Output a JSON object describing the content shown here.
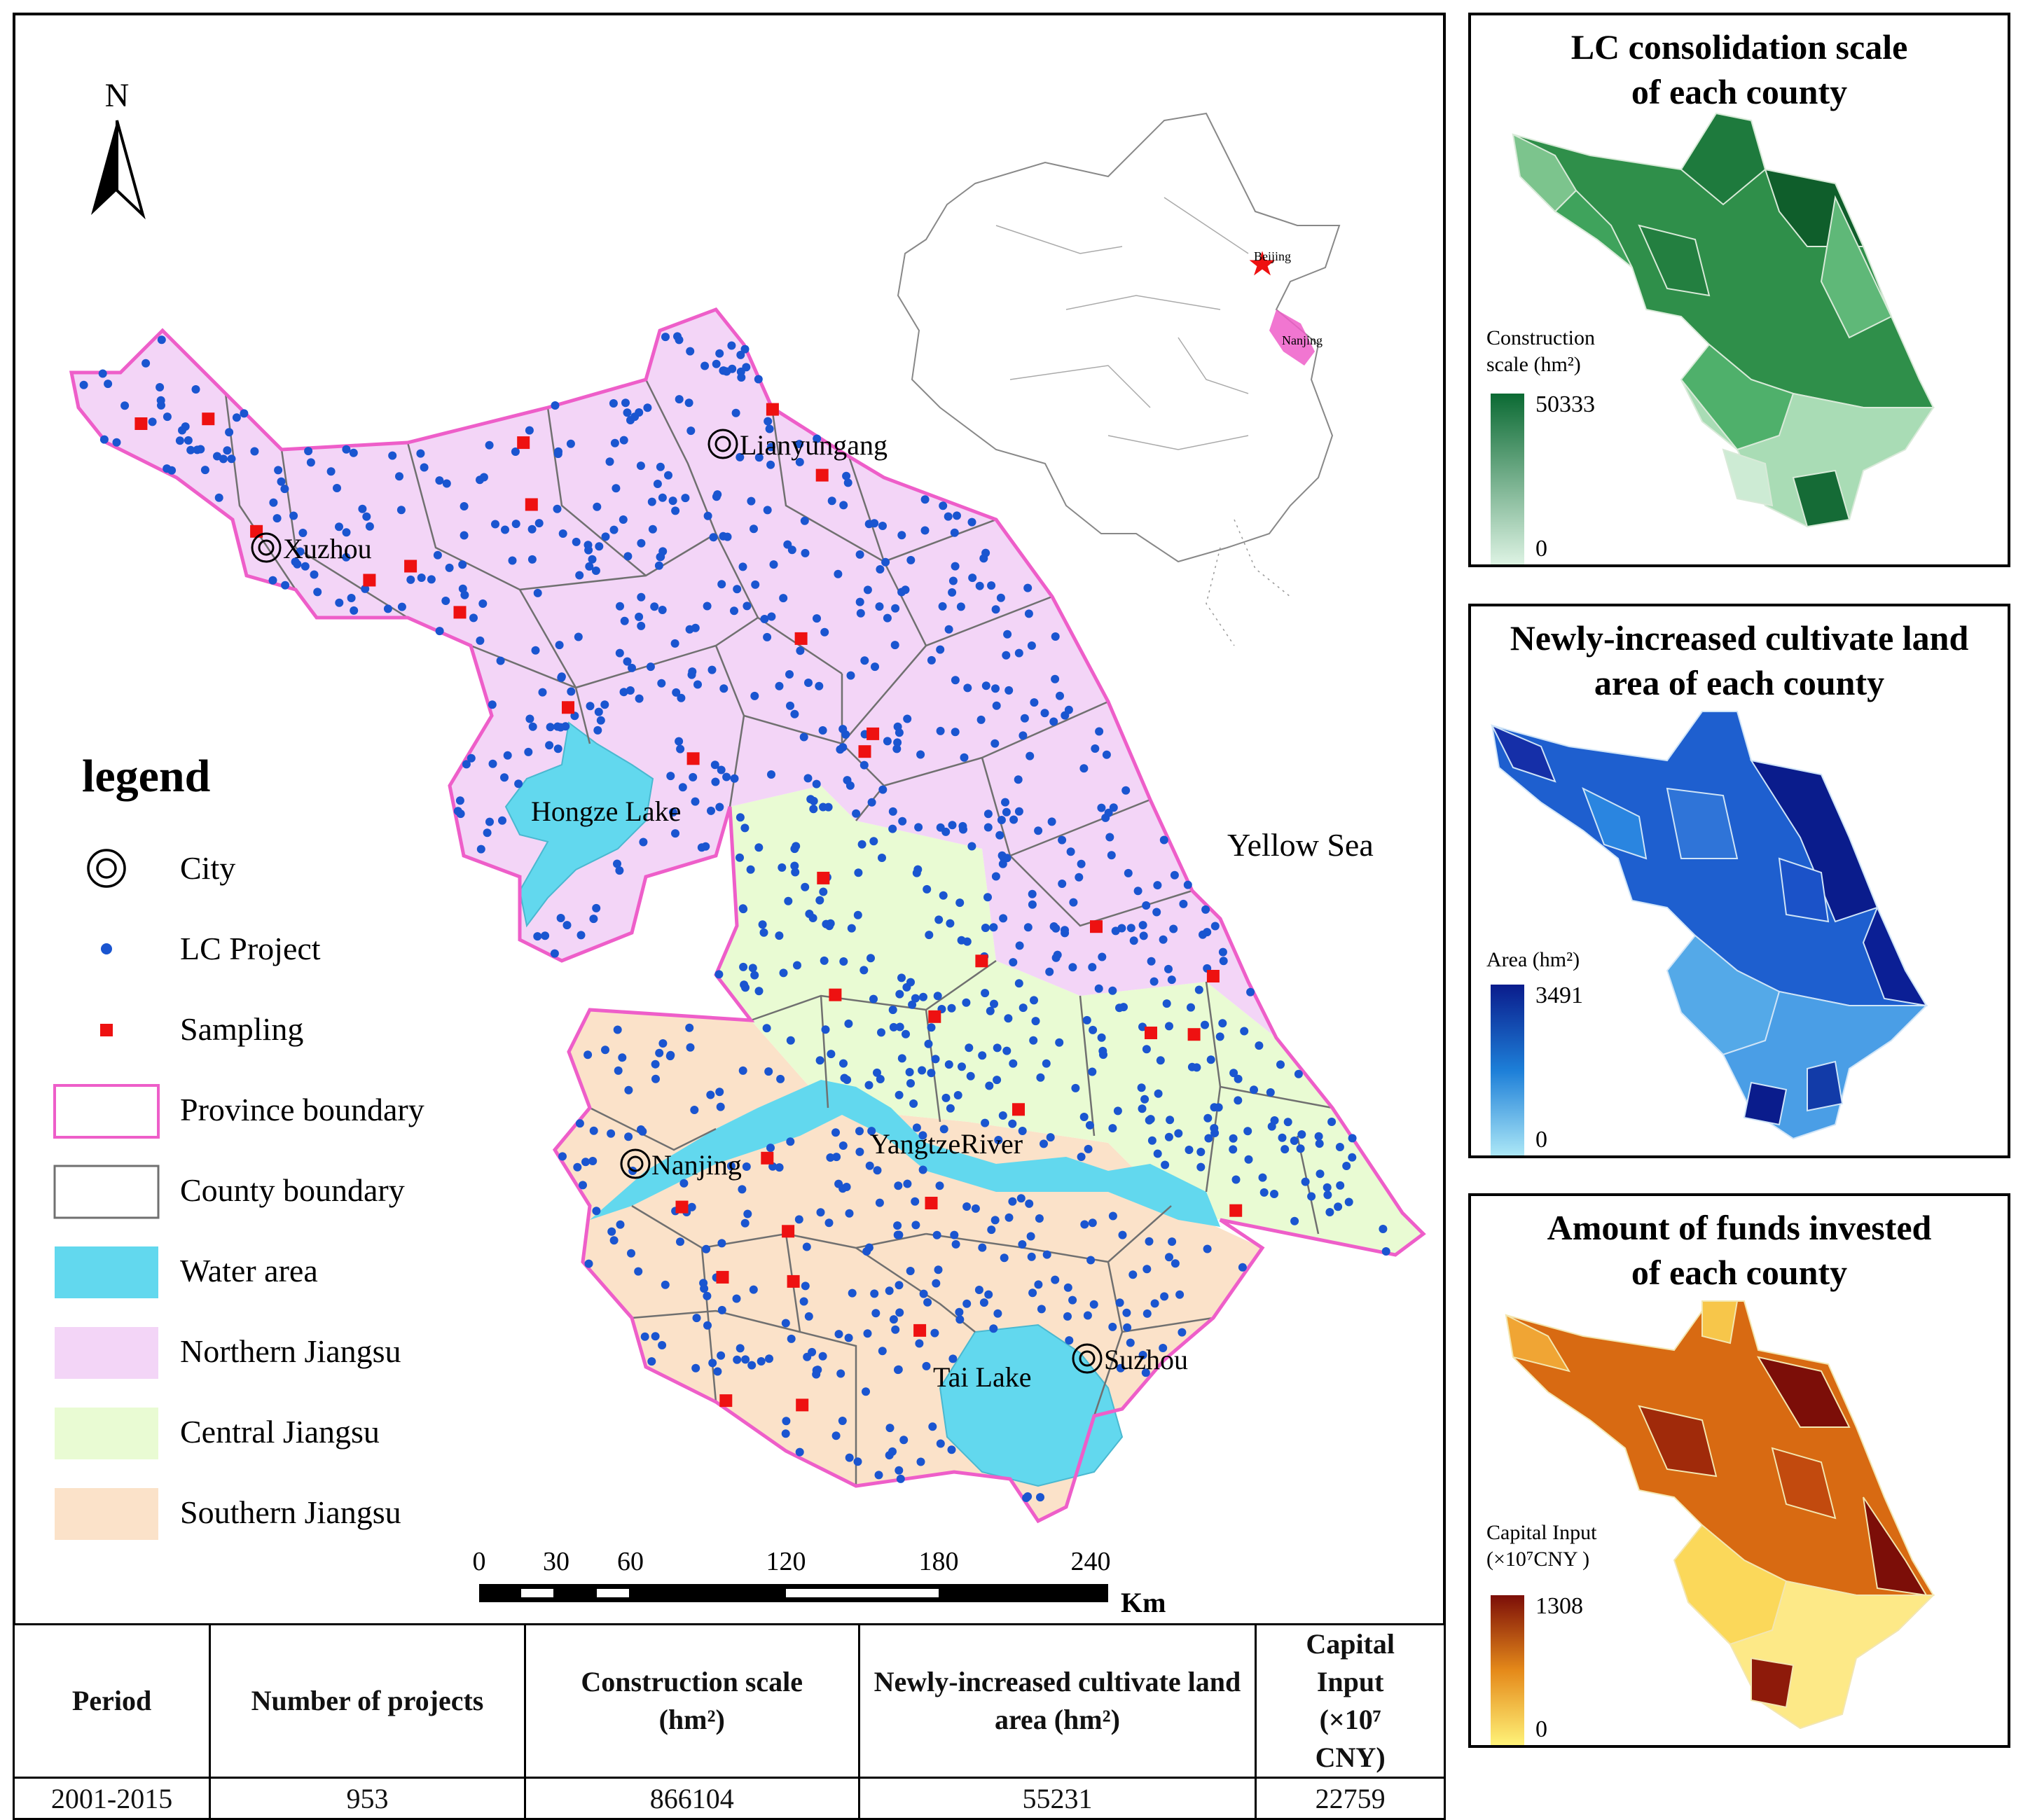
{
  "main_map": {
    "north_label": "N",
    "inset_labels": {
      "capital": "Beijing",
      "province": "Nanjing"
    },
    "cities": [
      "Lianyungang",
      "Xuzhou",
      "Nanjing",
      "Suzhou"
    ],
    "water_labels": {
      "hongze": "Hongze Lake",
      "yangtze": "YangtzeRiver",
      "tai": "Tai Lake",
      "sea": "Yellow Sea"
    },
    "legend": {
      "title": "legend",
      "items": [
        "City",
        "LC Project",
        "Sampling",
        "Province boundary",
        "County boundary",
        "Water area",
        "Northern Jiangsu",
        "Central Jiangsu",
        "Southern Jiangsu"
      ]
    },
    "scale": {
      "ticks": [
        "0",
        "30",
        "60",
        "120",
        "180",
        "240"
      ],
      "unit": "Km"
    }
  },
  "colors": {
    "northern": "#f3d5f7",
    "central": "#e9fbd3",
    "southern": "#fbe2c9",
    "water": "#62d8ee",
    "province_boundary": "#ee5ec9",
    "county_boundary": "#707070",
    "project": "#1a55d0",
    "sampling": "#ee1111"
  },
  "summary_table": {
    "headers": [
      "Period",
      "Number of projects",
      "Construction scale (hm²)",
      "Newly-increased cultivate land area (hm²)",
      "Capital Input (×10⁷ CNY)"
    ],
    "rows": [
      [
        "2001-2015",
        "953",
        "866104",
        "55231",
        "22759"
      ]
    ]
  },
  "panels": [
    {
      "title_line1": "LC consolidation scale",
      "title_line2": "of each county",
      "legend_line1": "Construction",
      "legend_line2": "scale (hm²)",
      "max": "50333",
      "min": "0",
      "color_high": "#0b6a33",
      "color_low": "#dff4e5"
    },
    {
      "title_line1": "Newly-increased cultivate land",
      "title_line2": "area of each county",
      "legend_line1": "Area (hm²)",
      "legend_line2": "",
      "max": "3491",
      "min": "0",
      "color_high": "#0a1c8c",
      "color_low": "#aee9f7"
    },
    {
      "title_line1": "Amount of funds invested",
      "title_line2": "of each county",
      "legend_line1": "Capital Input",
      "legend_line2": "(×10⁷CNY )",
      "max": "1308",
      "min": "0",
      "color_high": "#7c0e08",
      "color_low": "#fff47a"
    }
  ]
}
